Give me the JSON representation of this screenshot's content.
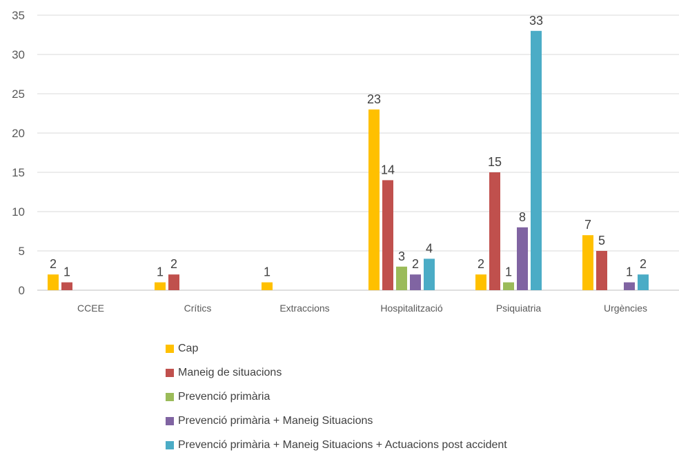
{
  "chart_data": {
    "type": "bar",
    "title": "",
    "xlabel": "",
    "ylabel": "",
    "ylim": [
      0,
      35
    ],
    "yticks": [
      0,
      5,
      10,
      15,
      20,
      25,
      30,
      35
    ],
    "grid": true,
    "legend_position": "bottom",
    "categories": [
      "CCEE",
      "Crítics",
      "Extraccions",
      "Hospitalització",
      "Psiquiatria",
      "Urgències"
    ],
    "series": [
      {
        "name": "Cap",
        "color": "#FFC000",
        "values": [
          2,
          1,
          1,
          23,
          2,
          7
        ]
      },
      {
        "name": "Maneig de situacions",
        "color": "#C0504D",
        "values": [
          1,
          2,
          null,
          14,
          15,
          5
        ]
      },
      {
        "name": "Prevenció primària",
        "color": "#9BBB59",
        "values": [
          null,
          null,
          null,
          3,
          1,
          null
        ]
      },
      {
        "name": "Prevenció primària + Maneig Situacions",
        "color": "#8064A2",
        "values": [
          null,
          null,
          null,
          2,
          8,
          1
        ]
      },
      {
        "name": "Prevenció primària + Maneig Situacions + Actuacions post accident",
        "color": "#4BACC6",
        "values": [
          null,
          null,
          null,
          4,
          33,
          2
        ]
      }
    ]
  }
}
